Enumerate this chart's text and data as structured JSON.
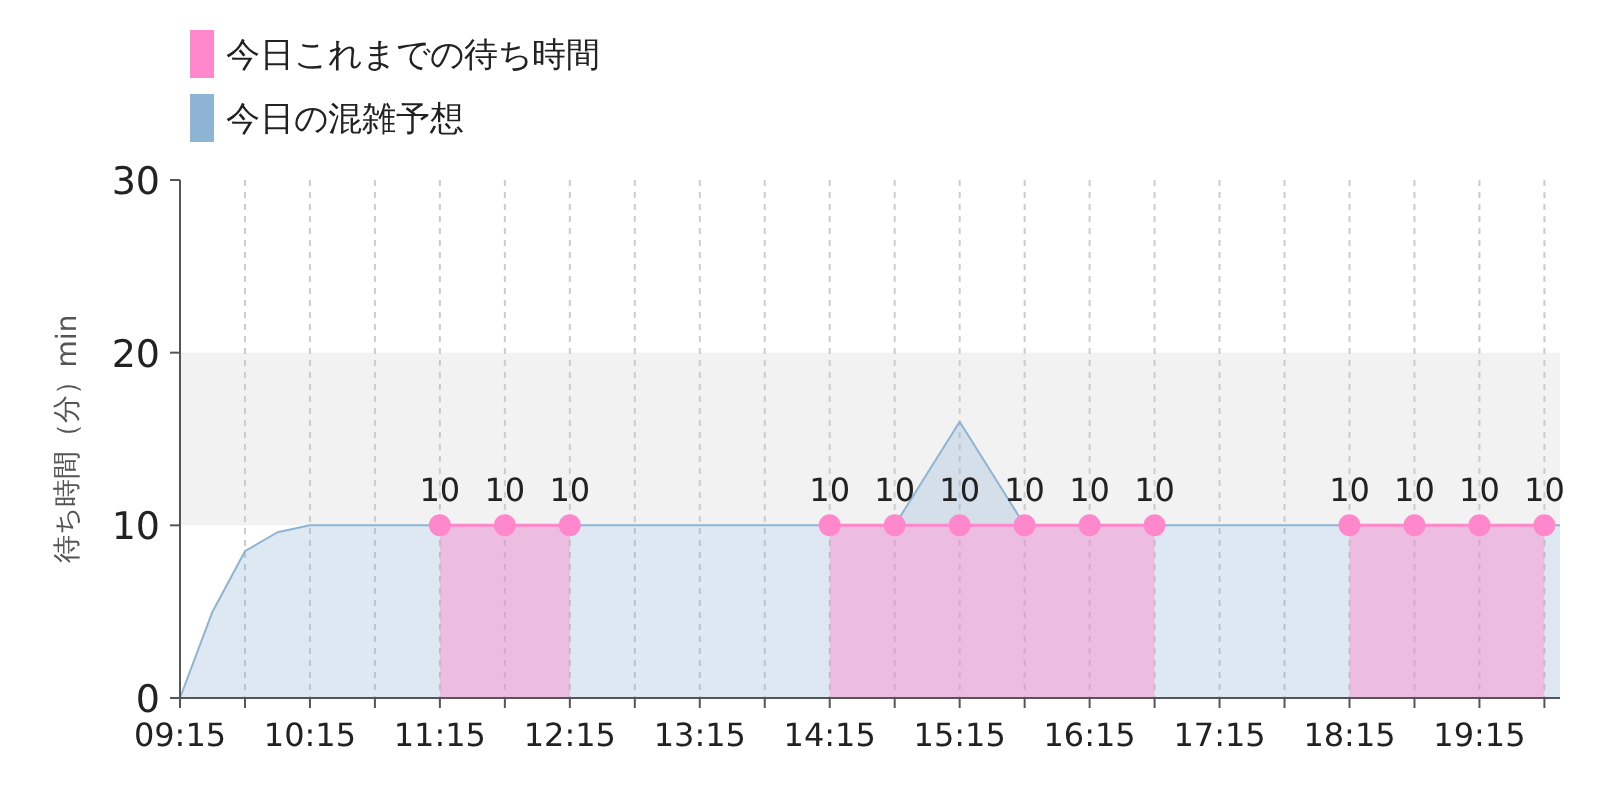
{
  "chart_data": {
    "type": "area",
    "ylabel": "待ち時間（分）min",
    "legend": "top left",
    "grid": "x",
    "marker": "circle",
    "xlim": [
      9.25,
      19.87
    ],
    "xticks": [
      {
        "value": 9.25,
        "label": "09:15"
      },
      {
        "value": 9.75,
        "label": null
      },
      {
        "value": 10.25,
        "label": "10:15"
      },
      {
        "value": 10.75,
        "label": null
      },
      {
        "value": 11.25,
        "label": "11:15"
      },
      {
        "value": 11.75,
        "label": null
      },
      {
        "value": 12.25,
        "label": "12:15"
      },
      {
        "value": 12.75,
        "label": null
      },
      {
        "value": 13.25,
        "label": "13:15"
      },
      {
        "value": 13.75,
        "label": null
      },
      {
        "value": 14.25,
        "label": "14:15"
      },
      {
        "value": 14.75,
        "label": null
      },
      {
        "value": 15.25,
        "label": "15:15"
      },
      {
        "value": 15.75,
        "label": null
      },
      {
        "value": 16.25,
        "label": "16:15"
      },
      {
        "value": 16.75,
        "label": null
      },
      {
        "value": 17.25,
        "label": "17:15"
      },
      {
        "value": 17.75,
        "label": null
      },
      {
        "value": 18.25,
        "label": "18:15"
      },
      {
        "value": 18.75,
        "label": null
      },
      {
        "value": 19.25,
        "label": "19:15"
      },
      {
        "value": 19.75,
        "label": null
      }
    ],
    "ylim": [
      0,
      30
    ],
    "yticks": [
      0,
      10,
      20,
      30
    ],
    "bands": [
      {
        "axis": "y",
        "from": 10,
        "to": 20,
        "color": "#f2f2f2"
      }
    ],
    "series": [
      {
        "name": "今日これまでの待ち時間",
        "color": "#ff88cc",
        "x": [
          11.25,
          11.75,
          12.25,
          14.25,
          14.75,
          15.25,
          15.75,
          16.25,
          16.75,
          18.25,
          18.75,
          19.25,
          19.75
        ],
        "values": [
          10,
          10,
          10,
          10,
          10,
          10,
          10,
          10,
          10,
          10,
          10,
          10,
          10
        ],
        "value_labels": [
          "10",
          "10",
          "10",
          "10",
          "10",
          "10",
          "10",
          "10",
          "10",
          "10",
          "10",
          "10",
          "10"
        ]
      },
      {
        "name": "今日の混雑予想",
        "color": "#8eb4d4",
        "marker": "none",
        "x": [
          9.25,
          9.5,
          9.75,
          10.0,
          10.25,
          10.5,
          14.75,
          15.0,
          15.25,
          15.5,
          15.75,
          19.87
        ],
        "values": [
          0,
          5,
          8.5,
          9.6,
          10,
          10,
          10,
          13,
          16,
          13,
          10,
          10
        ]
      }
    ]
  }
}
